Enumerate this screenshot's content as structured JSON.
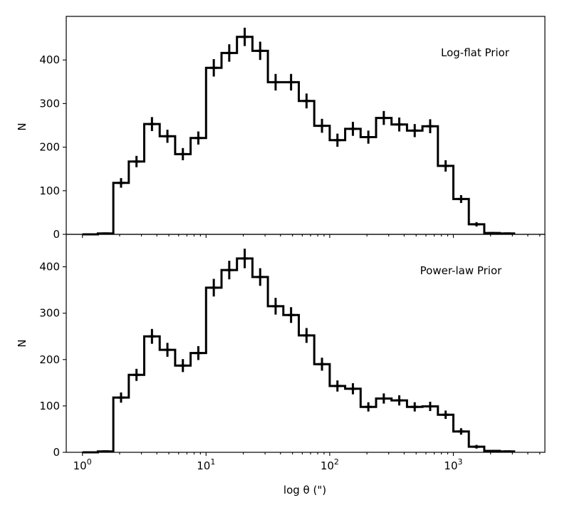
{
  "chart_data": [
    {
      "type": "histogram-step",
      "title": "",
      "panel_label": "Log-flat Prior",
      "xlabel": "",
      "ylabel": "N",
      "x_scale": "log10",
      "xlim": [
        0.74,
        5500
      ],
      "ylim": [
        0,
        500
      ],
      "yticks": [
        "0",
        "100",
        "200",
        "300",
        "400"
      ],
      "bin_edges": [
        1.0,
        1.3335,
        1.7783,
        2.3714,
        3.1623,
        4.217,
        5.6234,
        7.4989,
        10.0,
        13.335,
        17.783,
        23.714,
        31.623,
        42.17,
        56.234,
        74.989,
        100.0,
        133.35,
        177.83,
        237.14,
        316.23,
        421.7,
        562.34,
        749.89,
        1000.0,
        1333.5,
        1778.3,
        2371.4,
        3162.3
      ],
      "counts": [
        0,
        2,
        118,
        167,
        253,
        225,
        184,
        221,
        382,
        416,
        453,
        421,
        349,
        349,
        306,
        249,
        216,
        242,
        223,
        267,
        252,
        238,
        248,
        157,
        81,
        23,
        3,
        2
      ],
      "errors": [
        0,
        2,
        11,
        13,
        16,
        15,
        14,
        15,
        20,
        20,
        21,
        21,
        19,
        19,
        17,
        16,
        15,
        16,
        15,
        16,
        16,
        15,
        16,
        13,
        9,
        5,
        2,
        1
      ]
    },
    {
      "type": "histogram-step",
      "title": "",
      "panel_label": "Power-law Prior",
      "xlabel": "log θ (\")",
      "ylabel": "N",
      "x_scale": "log10",
      "xlim": [
        0.74,
        5500
      ],
      "ylim": [
        0,
        470
      ],
      "yticks": [
        "0",
        "100",
        "200",
        "300",
        "400"
      ],
      "xticks": [
        {
          "base": "10",
          "exp": "0",
          "value": 1
        },
        {
          "base": "10",
          "exp": "1",
          "value": 10
        },
        {
          "base": "10",
          "exp": "2",
          "value": 100
        },
        {
          "base": "10",
          "exp": "3",
          "value": 1000
        }
      ],
      "bin_edges": [
        1.0,
        1.3335,
        1.7783,
        2.3714,
        3.1623,
        4.217,
        5.6234,
        7.4989,
        10.0,
        13.335,
        17.783,
        23.714,
        31.623,
        42.17,
        56.234,
        74.989,
        100.0,
        133.35,
        177.83,
        237.14,
        316.23,
        421.7,
        562.34,
        749.89,
        1000.0,
        1333.5,
        1778.3,
        2371.4,
        3162.3
      ],
      "counts": [
        0,
        2,
        118,
        167,
        250,
        221,
        187,
        214,
        355,
        393,
        418,
        378,
        315,
        296,
        252,
        190,
        143,
        137,
        98,
        116,
        112,
        98,
        99,
        81,
        45,
        12,
        3,
        2
      ],
      "errors": [
        0,
        2,
        11,
        13,
        16,
        15,
        14,
        15,
        19,
        20,
        21,
        19,
        18,
        17,
        16,
        14,
        12,
        12,
        10,
        11,
        11,
        10,
        10,
        9,
        7,
        4,
        2,
        1
      ]
    }
  ]
}
